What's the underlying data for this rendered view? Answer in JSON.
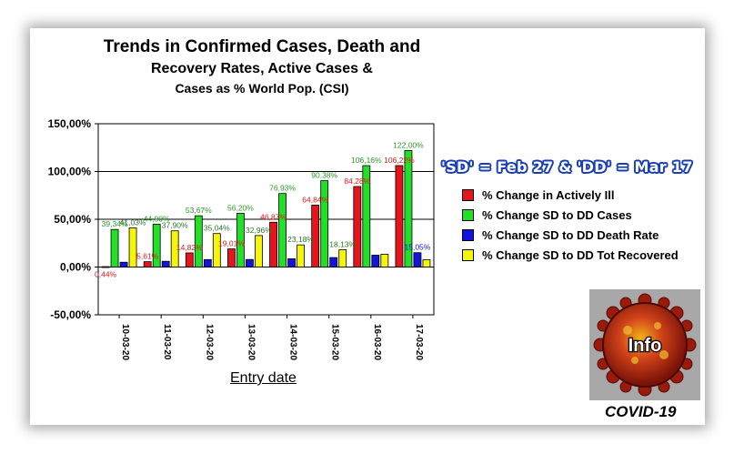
{
  "title": {
    "line1": "Trends in Confirmed Cases, Death and",
    "line2": "Recovery Rates, Active Cases &",
    "line3": "Cases as % World Pop. (CSI)"
  },
  "annotation": "'SD' = Feb 27 & 'DD' = Mar 17",
  "logo": {
    "icon": "virus-icon",
    "text": "Info"
  },
  "caption": "COVID-19",
  "colors": {
    "red": "#e8141b",
    "green": "#22e028",
    "blue": "#1414e0",
    "yellow": "#f5f50a"
  },
  "chart_data": {
    "type": "bar",
    "title": "Trends in Confirmed Cases, Death and Recovery Rates, Active Cases & Cases as % World Pop. (CSI)",
    "xlabel": "Entry date",
    "ylabel": "",
    "ylim": [
      -50,
      150
    ],
    "yticks": [
      "150,00%",
      "100,00%",
      "50,00%",
      "0,00%",
      "-50,00%"
    ],
    "ytick_values": [
      150,
      100,
      50,
      0,
      -50
    ],
    "categories": [
      "10-03-20",
      "11-03-20",
      "12-03-20",
      "13-03-20",
      "14-03-20",
      "15-03-20",
      "16-03-20",
      "17-03-20"
    ],
    "series": [
      {
        "name": "% Change in Actively Ill",
        "color": "#e8141b",
        "values": [
          0.44,
          5.61,
          14.82,
          19.01,
          46.87,
          64.84,
          84.28,
          106.22
        ],
        "labels": [
          "0,44%",
          "5,61%",
          "14,82%",
          "19,01%",
          "46,87%",
          "64,84%",
          "84,28%",
          "106,22%"
        ]
      },
      {
        "name": "% Change SD to DD Cases",
        "color": "#22e028",
        "values": [
          39.34,
          44.9,
          53.67,
          56.2,
          76.93,
          90.38,
          106.16,
          122.0
        ],
        "labels": [
          "39,34%",
          "44,90%",
          "53,67%",
          "56,20%",
          "76,93%",
          "90,38%",
          "106,16%",
          "122,00%"
        ]
      },
      {
        "name": "% Change SD to DD Death Rate",
        "color": "#1414e0",
        "values": [
          5.0,
          6.0,
          7.8,
          7.9,
          8.6,
          9.9,
          12.4,
          15.05
        ],
        "labels": [
          "",
          "",
          "",
          "",
          "",
          "",
          "",
          "15,05%"
        ]
      },
      {
        "name": "% Change SD to DD Tot Recovered",
        "color": "#f5f50a",
        "values": [
          41.03,
          37.9,
          35.04,
          32.96,
          23.18,
          18.13,
          13.4,
          7.6
        ],
        "labels": [
          "41,03%",
          "37,90%",
          "35,04%",
          "32,96%",
          "23,18%",
          "18,13%",
          "",
          ""
        ]
      }
    ],
    "grid": "horizontal",
    "legend_position": "right"
  }
}
